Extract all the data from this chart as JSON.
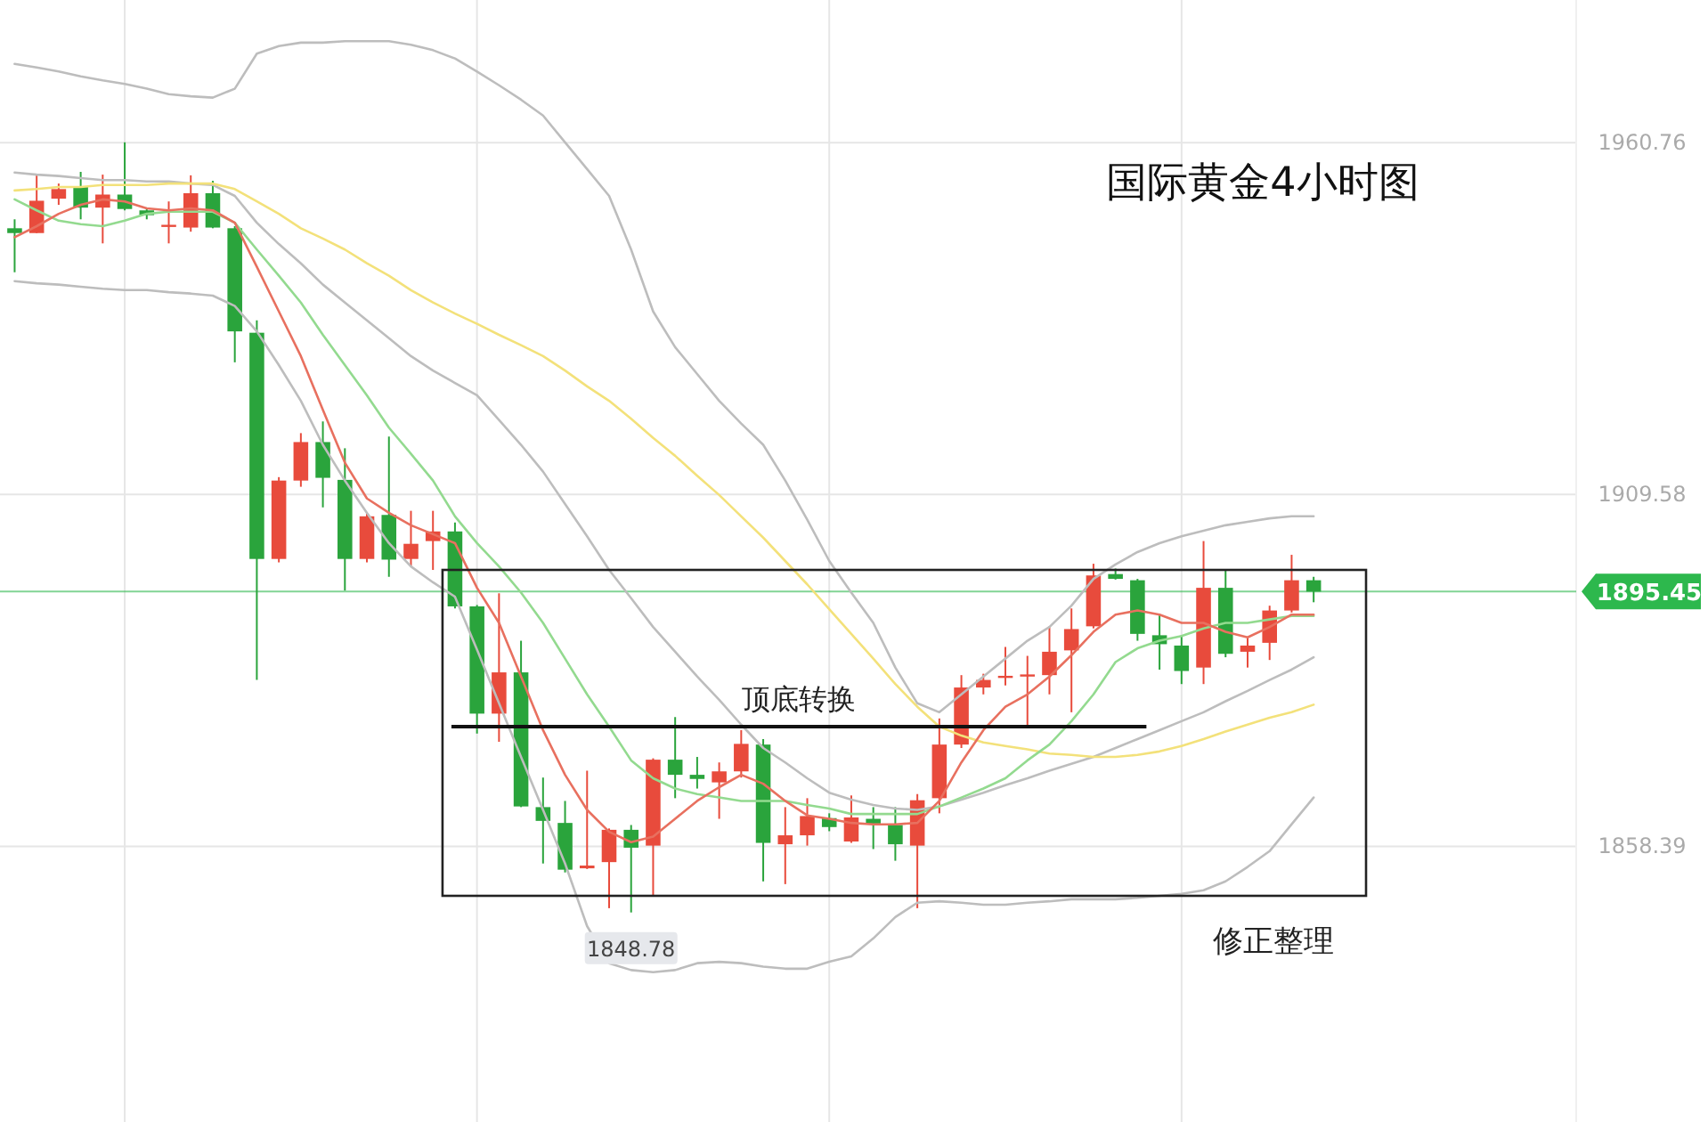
{
  "chart_data": {
    "type": "candlestick",
    "title": "国际黄金4小时图",
    "categories": [
      null,
      null,
      null,
      null,
      null,
      null,
      null,
      null,
      null,
      null,
      null,
      null,
      null,
      null,
      null,
      null,
      null,
      null,
      null,
      null,
      null,
      null,
      null,
      null,
      null,
      null,
      null,
      null,
      null,
      null,
      null,
      null,
      null,
      null,
      null,
      null,
      null,
      null,
      null,
      null,
      null,
      null,
      null,
      null,
      null,
      null,
      null,
      null,
      null,
      null,
      null,
      null,
      null,
      null,
      null,
      null,
      null,
      null,
      null,
      null
    ],
    "ohlc": [
      [
        1948.3,
        1949.6,
        1941.9,
        1947.6
      ],
      [
        1947.6,
        1956.1,
        1947.6,
        1952.3
      ],
      [
        1952.6,
        1954.8,
        1951.7,
        1954.0
      ],
      [
        1954.3,
        1956.5,
        1949.6,
        1951.3
      ],
      [
        1951.3,
        1956.1,
        1946.1,
        1953.2
      ],
      [
        1953.2,
        1960.8,
        1950.9,
        1951.1
      ],
      [
        1950.9,
        1951.3,
        1949.6,
        1950.2
      ],
      [
        1948.6,
        1952.2,
        1946.1,
        1948.8
      ],
      [
        1948.4,
        1956.0,
        1947.8,
        1953.4
      ],
      [
        1953.4,
        1955.2,
        1948.3,
        1948.4
      ],
      [
        1948.3,
        1948.6,
        1928.8,
        1933.3
      ],
      [
        1933.1,
        1934.9,
        1882.6,
        1900.2
      ],
      [
        1900.2,
        1912.1,
        1899.7,
        1911.6
      ],
      [
        1911.6,
        1918.5,
        1910.7,
        1917.2
      ],
      [
        1917.2,
        1920.2,
        1907.7,
        1912.0
      ],
      [
        1911.7,
        1916.3,
        1895.6,
        1900.2
      ],
      [
        1900.2,
        1906.9,
        1899.7,
        1906.4
      ],
      [
        1906.6,
        1918.0,
        1897.6,
        1900.1
      ],
      [
        1900.2,
        1907.2,
        1899.1,
        1902.4
      ],
      [
        1902.8,
        1907.2,
        1898.6,
        1904.2
      ],
      [
        1904.2,
        1905.5,
        1893.0,
        1893.3
      ],
      [
        1893.3,
        1893.5,
        1874.8,
        1877.7
      ],
      [
        1877.7,
        1895.2,
        1873.6,
        1883.7
      ],
      [
        1883.7,
        1888.3,
        1864.1,
        1864.2
      ],
      [
        1864.1,
        1868.4,
        1855.9,
        1862.1
      ],
      [
        1861.8,
        1865.0,
        1854.6,
        1855.0
      ],
      [
        1855.2,
        1869.4,
        1855.1,
        1855.6
      ],
      [
        1856.1,
        1861.0,
        1849.4,
        1860.8
      ],
      [
        1860.8,
        1861.5,
        1848.78,
        1858.2
      ],
      [
        1858.5,
        1871.2,
        1851.1,
        1871.0
      ],
      [
        1871.0,
        1877.2,
        1865.4,
        1868.8
      ],
      [
        1868.8,
        1871.4,
        1866.8,
        1868.2
      ],
      [
        1867.7,
        1870.6,
        1862.4,
        1869.3
      ],
      [
        1869.3,
        1875.3,
        1868.4,
        1873.3
      ],
      [
        1873.2,
        1874.0,
        1853.3,
        1858.9
      ],
      [
        1858.7,
        1864.1,
        1852.9,
        1860.0
      ],
      [
        1860.0,
        1865.4,
        1858.5,
        1862.8
      ],
      [
        1862.5,
        1863.2,
        1860.6,
        1861.2
      ],
      [
        1859.1,
        1865.8,
        1858.9,
        1862.6
      ],
      [
        1862.4,
        1864.1,
        1858.0,
        1861.7
      ],
      [
        1861.5,
        1864.1,
        1856.3,
        1858.7
      ],
      [
        1858.5,
        1866.0,
        1849.4,
        1865.1
      ],
      [
        1865.4,
        1877.0,
        1863.2,
        1873.2
      ],
      [
        1873.2,
        1883.3,
        1872.7,
        1881.5
      ],
      [
        1881.5,
        1883.5,
        1880.5,
        1882.6
      ],
      [
        1882.9,
        1887.4,
        1881.8,
        1883.2
      ],
      [
        1883.1,
        1886.1,
        1875.7,
        1883.4
      ],
      [
        1883.3,
        1890.4,
        1880.5,
        1886.7
      ],
      [
        1886.9,
        1893.0,
        1877.9,
        1890.0
      ],
      [
        1890.4,
        1899.5,
        1890.1,
        1897.8
      ],
      [
        1898.0,
        1898.8,
        1897.2,
        1897.3
      ],
      [
        1897.1,
        1897.3,
        1888.3,
        1889.3
      ],
      [
        1889.1,
        1892.1,
        1884.1,
        1887.8
      ],
      [
        1887.6,
        1889.1,
        1882.0,
        1883.9
      ],
      [
        1884.4,
        1902.8,
        1882.0,
        1896.0
      ],
      [
        1896.0,
        1898.6,
        1885.9,
        1886.4
      ],
      [
        1886.7,
        1888.7,
        1884.4,
        1887.6
      ],
      [
        1888.0,
        1893.4,
        1885.5,
        1892.7
      ],
      [
        1892.7,
        1900.8,
        1892.4,
        1897.1
      ],
      [
        1897.1,
        1897.6,
        1893.9,
        1895.45
      ]
    ],
    "colors": [
      "#2aa43c",
      "#e84b3c",
      "#e84b3c",
      "#2aa43c",
      "#e84b3c",
      "#2aa43c",
      "#2aa43c",
      "#e84b3c",
      "#e84b3c",
      "#2aa43c",
      "#2aa43c",
      "#2aa43c",
      "#e84b3c",
      "#e84b3c",
      "#2aa43c",
      "#2aa43c",
      "#e84b3c",
      "#2aa43c",
      "#e84b3c",
      "#e84b3c",
      "#2aa43c",
      "#2aa43c",
      "#e84b3c",
      "#2aa43c",
      "#2aa43c",
      "#2aa43c",
      "#e84b3c",
      "#e84b3c",
      "#2aa43c",
      "#e84b3c",
      "#2aa43c",
      "#2aa43c",
      "#e84b3c",
      "#e84b3c",
      "#2aa43c",
      "#e84b3c",
      "#e84b3c",
      "#2aa43c",
      "#e84b3c",
      "#2aa43c",
      "#2aa43c",
      "#e84b3c",
      "#e84b3c",
      "#e84b3c",
      "#e84b3c",
      "#e84b3c",
      "#e84b3c",
      "#e84b3c",
      "#e84b3c",
      "#e84b3c",
      "#2aa43c",
      "#2aa43c",
      "#2aa43c",
      "#2aa43c",
      "#e84b3c",
      "#2aa43c",
      "#e84b3c",
      "#e84b3c",
      "#e84b3c",
      "#2aa43c"
    ],
    "series": [
      {
        "type": "line",
        "color": "#bdbdbd",
        "values": [
          1972.2,
          1971.7,
          1971.1,
          1970.4,
          1969.8,
          1969.3,
          1968.6,
          1967.8,
          1967.5,
          1967.3,
          1968.6,
          1973.7,
          1974.8,
          1975.3,
          1975.3,
          1975.5,
          1975.5,
          1975.5,
          1975.0,
          1974.2,
          1973.0,
          1971.1,
          1969.1,
          1967.0,
          1964.7,
          1960.8,
          1956.9,
          1953.0,
          1945.2,
          1936.2,
          1931.0,
          1927.1,
          1923.2,
          1919.9,
          1916.8,
          1911.6,
          1905.9,
          1899.9,
          1895.3,
          1890.9,
          1884.4,
          1879.2,
          1877.9,
          1880.5,
          1883.1,
          1885.7,
          1888.3,
          1890.3,
          1893.4,
          1897.3,
          1899.4,
          1901.2,
          1902.5,
          1903.5,
          1904.3,
          1905.1,
          1905.6,
          1906.1,
          1906.4,
          1906.4
        ]
      },
      {
        "type": "line",
        "color": "#bdbdbd",
        "values": [
          1956.4,
          1956.1,
          1955.9,
          1955.6,
          1955.3,
          1955.3,
          1955.1,
          1955.1,
          1954.8,
          1954.6,
          1953.0,
          1949.1,
          1946.0,
          1943.2,
          1940.1,
          1937.5,
          1934.9,
          1932.3,
          1929.7,
          1927.6,
          1925.8,
          1924.0,
          1920.4,
          1916.8,
          1912.9,
          1908.2,
          1903.5,
          1898.6,
          1894.5,
          1890.3,
          1886.7,
          1883.1,
          1879.7,
          1876.1,
          1872.7,
          1870.6,
          1868.3,
          1866.2,
          1865.2,
          1864.4,
          1863.9,
          1863.7,
          1864.2,
          1865.2,
          1866.2,
          1867.3,
          1868.3,
          1869.4,
          1870.4,
          1871.4,
          1872.7,
          1874.0,
          1875.3,
          1876.6,
          1877.9,
          1879.5,
          1881.0,
          1882.6,
          1884.1,
          1885.9
        ]
      },
      {
        "type": "line",
        "color": "#bdbdbd",
        "values": [
          1940.6,
          1940.3,
          1940.1,
          1939.8,
          1939.5,
          1939.3,
          1939.3,
          1939.0,
          1938.8,
          1938.5,
          1937.0,
          1933.3,
          1928.4,
          1923.2,
          1916.8,
          1911.6,
          1906.9,
          1902.5,
          1899.1,
          1896.8,
          1894.7,
          1887.0,
          1879.2,
          1871.4,
          1863.7,
          1855.9,
          1846.8,
          1841.4,
          1840.4,
          1840.1,
          1840.4,
          1841.4,
          1841.6,
          1841.4,
          1840.9,
          1840.6,
          1840.6,
          1841.6,
          1842.4,
          1845.0,
          1848.1,
          1850.2,
          1850.4,
          1850.2,
          1849.9,
          1849.9,
          1850.2,
          1850.4,
          1850.7,
          1850.7,
          1850.7,
          1850.9,
          1851.2,
          1851.5,
          1852.0,
          1853.3,
          1855.4,
          1857.7,
          1861.6,
          1865.5
        ]
      },
      {
        "type": "line",
        "color": "#f3e17a",
        "values": [
          1953.8,
          1954.0,
          1954.3,
          1954.3,
          1954.6,
          1954.6,
          1954.6,
          1954.8,
          1954.8,
          1954.8,
          1954.0,
          1952.2,
          1950.4,
          1948.3,
          1946.8,
          1945.2,
          1943.2,
          1941.4,
          1939.3,
          1937.5,
          1935.9,
          1934.4,
          1932.8,
          1931.3,
          1929.7,
          1927.6,
          1925.3,
          1923.2,
          1920.6,
          1917.8,
          1915.2,
          1912.3,
          1909.5,
          1906.4,
          1903.3,
          1899.9,
          1896.5,
          1892.9,
          1889.3,
          1885.7,
          1882.0,
          1878.7,
          1875.8,
          1874.5,
          1873.5,
          1873.0,
          1872.5,
          1871.9,
          1871.7,
          1871.4,
          1871.4,
          1871.7,
          1872.2,
          1873.0,
          1874.0,
          1875.1,
          1876.1,
          1877.1,
          1877.9,
          1879.0
        ]
      },
      {
        "type": "line",
        "color": "#93da8f",
        "values": [
          1952.5,
          1950.9,
          1949.4,
          1948.9,
          1948.6,
          1949.4,
          1950.4,
          1950.7,
          1950.7,
          1950.7,
          1949.1,
          1945.2,
          1941.4,
          1937.5,
          1932.8,
          1928.4,
          1924.0,
          1919.3,
          1915.5,
          1911.6,
          1906.4,
          1902.5,
          1899.1,
          1895.3,
          1890.9,
          1885.7,
          1880.5,
          1875.8,
          1870.9,
          1868.3,
          1866.8,
          1866.0,
          1865.5,
          1865.0,
          1865.0,
          1865.0,
          1864.4,
          1863.9,
          1863.1,
          1863.1,
          1863.1,
          1863.1,
          1864.2,
          1865.5,
          1866.8,
          1868.3,
          1870.9,
          1873.2,
          1876.6,
          1880.5,
          1885.2,
          1887.2,
          1888.3,
          1889.0,
          1890.1,
          1890.9,
          1890.9,
          1891.4,
          1891.9,
          1891.9
        ]
      },
      {
        "type": "line",
        "color": "#e8705f",
        "values": [
          1947.0,
          1948.6,
          1950.4,
          1951.7,
          1952.5,
          1952.2,
          1951.2,
          1950.9,
          1951.2,
          1950.9,
          1949.1,
          1942.7,
          1936.2,
          1929.7,
          1921.9,
          1914.2,
          1909.0,
          1906.9,
          1905.1,
          1903.8,
          1902.5,
          1896.0,
          1890.9,
          1883.1,
          1875.3,
          1868.8,
          1863.7,
          1860.5,
          1859.0,
          1859.8,
          1862.4,
          1865.0,
          1867.0,
          1868.8,
          1867.5,
          1865.0,
          1862.9,
          1862.4,
          1861.8,
          1861.6,
          1861.6,
          1861.8,
          1865.0,
          1870.6,
          1875.3,
          1878.7,
          1880.5,
          1883.1,
          1886.2,
          1889.6,
          1892.1,
          1892.7,
          1892.1,
          1890.9,
          1890.9,
          1889.6,
          1888.8,
          1890.3,
          1892.1,
          1892.1
        ]
      }
    ],
    "ylim": [
      1818.3,
      1981.5
    ],
    "yticks": [
      1858.39,
      1909.58,
      1960.76
    ],
    "grid": true,
    "tick_labels": "y",
    "ref_lines": [
      {
        "axis": "y",
        "value": 1895.45,
        "label": "1895.45",
        "color": "#2db84d"
      }
    ],
    "annotations": [
      "顶底转换",
      {
        "text": "1848.78",
        "y": 1848.78
      },
      "修正整理"
    ]
  }
}
